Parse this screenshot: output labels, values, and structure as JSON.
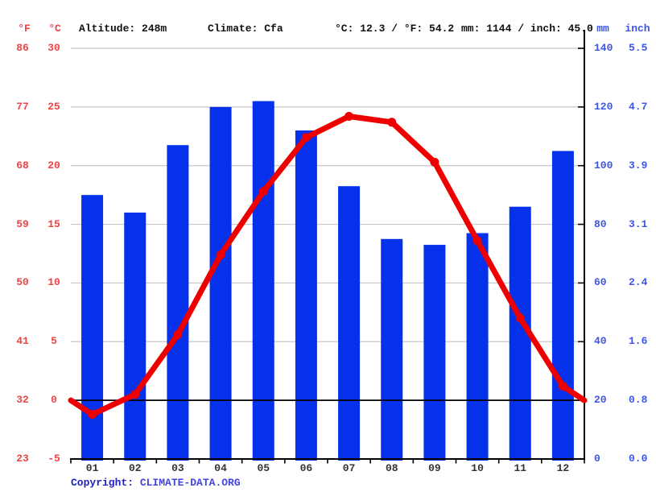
{
  "header": {
    "f_label": "°F",
    "c_label": "°C",
    "altitude": "Altitude: 248m",
    "climate": "Climate: Cfa",
    "temp_summary": "°C: 12.3 / °F: 54.2",
    "precip_summary": "mm: 1144 / inch: 45.0",
    "mm_label": "mm",
    "inch_label": "inch"
  },
  "chart_data": {
    "type": "bar+line",
    "categories": [
      "01",
      "02",
      "03",
      "04",
      "05",
      "06",
      "07",
      "08",
      "09",
      "10",
      "11",
      "12"
    ],
    "series": [
      {
        "name": "precipitation",
        "type": "bar",
        "unit": "mm",
        "values": [
          90,
          84,
          107,
          120,
          122,
          112,
          93,
          75,
          73,
          77,
          86,
          105
        ]
      },
      {
        "name": "temperature",
        "type": "line",
        "unit": "°C",
        "values": [
          -1.2,
          0.5,
          5.6,
          12.4,
          17.8,
          22.4,
          24.2,
          23.7,
          20.3,
          13.6,
          7.0,
          1.2
        ],
        "edge_start": 0.0,
        "edge_end": 0.0
      }
    ],
    "left_axis": {
      "f_ticks": [
        "86",
        "77",
        "68",
        "59",
        "50",
        "41",
        "32",
        "23"
      ],
      "c_ticks": [
        "30",
        "25",
        "20",
        "15",
        "10",
        "5",
        "0",
        "-5"
      ],
      "c_range": [
        -5,
        30
      ]
    },
    "right_axis": {
      "mm_ticks": [
        "140",
        "120",
        "100",
        "80",
        "60",
        "40",
        "20",
        "0"
      ],
      "inch_ticks": [
        "5.5",
        "4.7",
        "3.9",
        "3.1",
        "2.4",
        "1.6",
        "0.8",
        "0.0"
      ],
      "mm_range": [
        0,
        140
      ]
    },
    "grid": true,
    "zero_line_c": 0
  },
  "footer": {
    "copyright_label": "Copyright:",
    "link_text": "CLIMATE-DATA.ORG"
  },
  "colors": {
    "bar": "#0531eb",
    "line": "#ee0000",
    "red_label": "#ee4444",
    "blue_label": "#3d56e8",
    "grid": "#c8c8c8",
    "axis": "#000000",
    "month_label": "#333333",
    "header_text": "#111111",
    "copyright": "#2222bb",
    "link": "#4444dd"
  }
}
